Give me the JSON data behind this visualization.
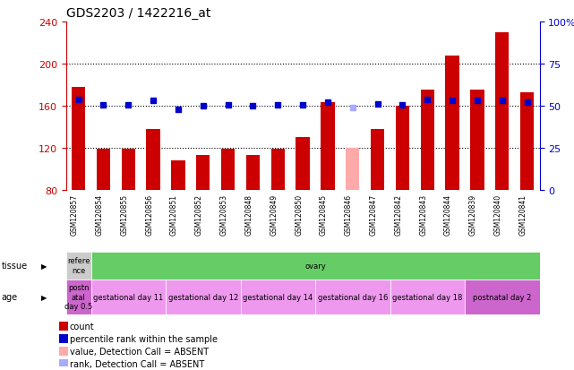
{
  "title": "GDS2203 / 1422216_at",
  "samples": [
    "GSM120857",
    "GSM120854",
    "GSM120855",
    "GSM120856",
    "GSM120851",
    "GSM120852",
    "GSM120853",
    "GSM120848",
    "GSM120849",
    "GSM120850",
    "GSM120845",
    "GSM120846",
    "GSM120847",
    "GSM120842",
    "GSM120843",
    "GSM120844",
    "GSM120839",
    "GSM120840",
    "GSM120841"
  ],
  "bar_values": [
    178,
    119,
    119,
    138,
    108,
    113,
    119,
    113,
    119,
    130,
    163,
    120,
    138,
    160,
    175,
    208,
    175,
    230,
    173
  ],
  "bar_colors": [
    "#cc0000",
    "#cc0000",
    "#cc0000",
    "#cc0000",
    "#cc0000",
    "#cc0000",
    "#cc0000",
    "#cc0000",
    "#cc0000",
    "#cc0000",
    "#cc0000",
    "#ffaaaa",
    "#cc0000",
    "#cc0000",
    "#cc0000",
    "#cc0000",
    "#cc0000",
    "#cc0000",
    "#cc0000"
  ],
  "rank_values": [
    166,
    161,
    161,
    165,
    157,
    160,
    161,
    160,
    161,
    161,
    163,
    158,
    162,
    161,
    166,
    165,
    165,
    165,
    163
  ],
  "rank_colors": [
    "#0000cc",
    "#0000cc",
    "#0000cc",
    "#0000cc",
    "#0000cc",
    "#0000cc",
    "#0000cc",
    "#0000cc",
    "#0000cc",
    "#0000cc",
    "#0000cc",
    "#aaaaff",
    "#0000cc",
    "#0000cc",
    "#0000cc",
    "#0000cc",
    "#0000cc",
    "#0000cc",
    "#0000cc"
  ],
  "ymin": 80,
  "ymax": 240,
  "yticks_left": [
    80,
    120,
    160,
    200,
    240
  ],
  "yticks_right": [
    0,
    25,
    50,
    75,
    100
  ],
  "tissue_groups": [
    {
      "label": "refere\nnce",
      "color": "#cccccc",
      "start": 0,
      "end": 1
    },
    {
      "label": "ovary",
      "color": "#66cc66",
      "start": 1,
      "end": 19
    }
  ],
  "age_groups": [
    {
      "label": "postn\natal\nday 0.5",
      "color": "#cc66cc",
      "start": 0,
      "end": 1
    },
    {
      "label": "gestational day 11",
      "color": "#ee99ee",
      "start": 1,
      "end": 4
    },
    {
      "label": "gestational day 12",
      "color": "#ee99ee",
      "start": 4,
      "end": 7
    },
    {
      "label": "gestational day 14",
      "color": "#ee99ee",
      "start": 7,
      "end": 10
    },
    {
      "label": "gestational day 16",
      "color": "#ee99ee",
      "start": 10,
      "end": 13
    },
    {
      "label": "gestational day 18",
      "color": "#ee99ee",
      "start": 13,
      "end": 16
    },
    {
      "label": "postnatal day 2",
      "color": "#cc66cc",
      "start": 16,
      "end": 19
    }
  ],
  "legend_items": [
    {
      "color": "#cc0000",
      "label": "count"
    },
    {
      "color": "#0000cc",
      "label": "percentile rank within the sample"
    },
    {
      "color": "#ffaaaa",
      "label": "value, Detection Call = ABSENT"
    },
    {
      "color": "#aaaaff",
      "label": "rank, Detection Call = ABSENT"
    }
  ],
  "left_axis_color": "#cc0000",
  "right_axis_color": "#0000cc",
  "xtick_band_color": "#bbbbbb",
  "grid_dotted_vals": [
    120,
    160,
    200
  ]
}
